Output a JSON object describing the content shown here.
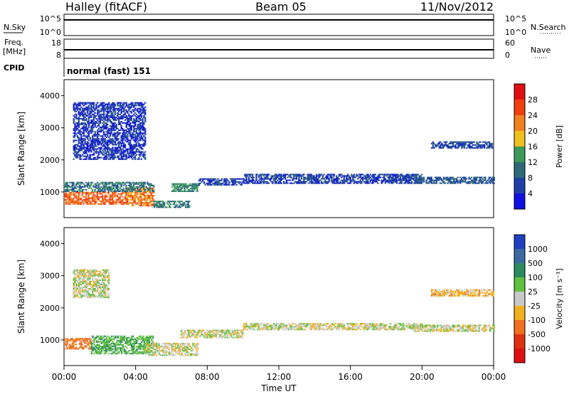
{
  "header": {
    "site": "Halley (fitACF)",
    "beam": "Beam 05",
    "date": "11/Nov/2012"
  },
  "strip_labels": {
    "nsky": "N.Sky",
    "nsky_ticks": [
      "10^5",
      "10^0"
    ],
    "nsearch": "N.Search",
    "nsearch_ticks": [
      "10^5",
      "10^0"
    ],
    "freq_line1": "Freq.",
    "freq_line2": "[MHz]",
    "freq_ticks": [
      "18",
      "8"
    ],
    "nave": "Nave",
    "nave_ticks": [
      "60",
      "0"
    ],
    "cpid": "CPID",
    "cpid_value": "normal (fast) 151"
  },
  "colors": {
    "frame": "#000000",
    "ground_scatter": "#c8c8c8"
  },
  "chart_data": [
    {
      "type": "heatmap",
      "name_key": "power",
      "ylabel": "Slant Range [km]",
      "yticks": [
        "1000",
        "2000",
        "3000",
        "4000"
      ],
      "ylim": [
        200,
        4500
      ],
      "xlim": [
        0,
        24
      ],
      "colorbar_label": "Power [dB]",
      "colorbar_ticks": [
        "4",
        "8",
        "12",
        "16",
        "20",
        "24",
        "28"
      ],
      "colorbar_colors": [
        "#1010e0",
        "#1f3fa8",
        "#2c6a78",
        "#3a9a5a",
        "#f0c020",
        "#f08020",
        "#f04010",
        "#e01010"
      ],
      "clim": [
        0,
        32
      ],
      "features": [
        {
          "t0": 0.0,
          "t1": 3.5,
          "r0": 600,
          "r1": 1000,
          "value": 24
        },
        {
          "t0": 3.5,
          "t1": 5.0,
          "r0": 550,
          "r1": 1100,
          "value": 22
        },
        {
          "t0": 0.0,
          "t1": 5.0,
          "r0": 1000,
          "r1": 1300,
          "value": 10
        },
        {
          "t0": 5.0,
          "t1": 7.0,
          "r0": 500,
          "r1": 700,
          "value": 11
        },
        {
          "t0": 6.0,
          "t1": 7.5,
          "r0": 1000,
          "r1": 1250,
          "value": 12
        },
        {
          "t0": 7.5,
          "t1": 10.0,
          "r0": 1200,
          "r1": 1400,
          "value": 6
        },
        {
          "t0": 10.0,
          "t1": 20.0,
          "r0": 1250,
          "r1": 1550,
          "value": 6
        },
        {
          "t0": 19.5,
          "t1": 24.0,
          "r0": 1250,
          "r1": 1450,
          "value": 8
        },
        {
          "t0": 20.5,
          "t1": 24.0,
          "r0": 2350,
          "r1": 2550,
          "value": 6
        },
        {
          "t0": 0.5,
          "t1": 4.5,
          "r0": 2000,
          "r1": 3800,
          "value": 5
        }
      ]
    },
    {
      "type": "heatmap",
      "name_key": "velocity",
      "ylabel": "Slant Range [km]",
      "yticks": [
        "1000",
        "2000",
        "3000",
        "4000"
      ],
      "ylim": [
        200,
        4500
      ],
      "xlim": [
        0,
        24
      ],
      "xticks": [
        "00:00",
        "04:00",
        "08:00",
        "12:00",
        "16:00",
        "20:00",
        "00:00"
      ],
      "xlabel": "Time UT",
      "colorbar_label": "Velocity [m s⁻¹]",
      "colorbar_ticks": [
        "1000",
        "500",
        "100",
        "25",
        "-25",
        "-100",
        "-500",
        "-1000"
      ],
      "colorbar_colors": [
        "#2040c0",
        "#3a6aa0",
        "#2c8a60",
        "#60c040",
        "#c8c8c8",
        "#f0b020",
        "#f07020",
        "#e03010",
        "#e01010"
      ],
      "features": [
        {
          "t0": 0.0,
          "t1": 1.5,
          "r0": 700,
          "r1": 1050,
          "value": -150
        },
        {
          "t0": 1.5,
          "t1": 5.0,
          "r0": 550,
          "r1": 1100,
          "value": 80
        },
        {
          "t0": 4.5,
          "t1": 7.5,
          "r0": 500,
          "r1": 900,
          "value": 0
        },
        {
          "t0": 6.5,
          "t1": 10.0,
          "r0": 1050,
          "r1": 1300,
          "value": 0
        },
        {
          "t0": 10.0,
          "t1": 20.0,
          "r0": 1300,
          "r1": 1500,
          "value": 0
        },
        {
          "t0": 19.5,
          "t1": 24.0,
          "r0": 1250,
          "r1": 1450,
          "value": 0
        },
        {
          "t0": 20.5,
          "t1": 24.0,
          "r0": 2350,
          "r1": 2550,
          "value": -60
        },
        {
          "t0": 0.5,
          "t1": 2.5,
          "r0": 2300,
          "r1": 3200,
          "value": 0
        }
      ]
    }
  ]
}
